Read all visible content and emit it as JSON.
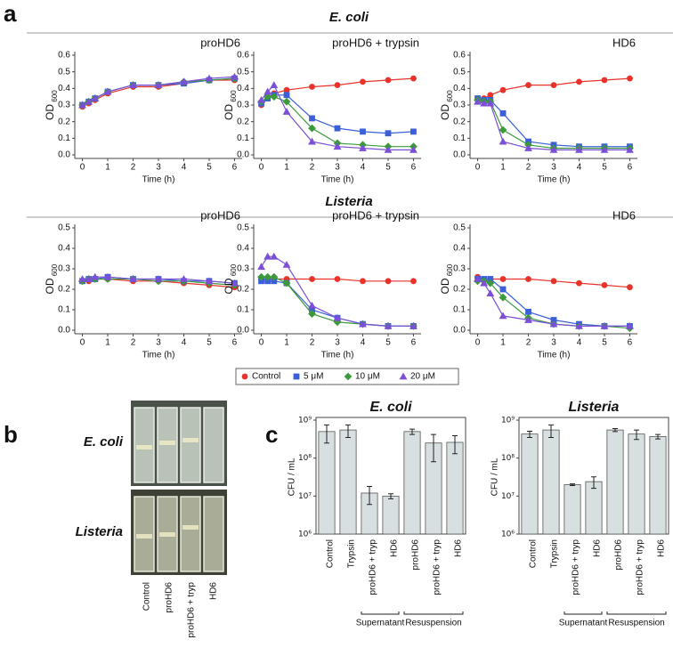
{
  "panel_labels": [
    "a",
    "b",
    "c"
  ],
  "sections": [
    "E. coli",
    "Listeria"
  ],
  "photo": {
    "row_labels": [
      "E. coli",
      "Listeria"
    ],
    "column_labels": [
      "Control",
      "proHD6",
      "proHD6 + tryp",
      "HD6"
    ]
  },
  "chart_data": [
    {
      "type": "line",
      "title": "proHD6",
      "ylabel": "OD",
      "ylabel_subscript": "600",
      "xlabel": "Time (h)",
      "x": [
        0,
        0.25,
        0.5,
        1,
        2,
        3,
        4,
        5,
        6
      ],
      "xlim": [
        -0.3,
        6.3
      ],
      "xticks": [
        0,
        1,
        2,
        3,
        4,
        5,
        6
      ],
      "ylim": [
        0,
        0.6
      ],
      "yticks": [
        {
          "value": 0,
          "label": "0.0"
        },
        0.1,
        0.2,
        0.3,
        0.4,
        0.5,
        0.6
      ],
      "legend_position": "bottom",
      "series": [
        {
          "name": "Control",
          "color": "#e8322a",
          "marker": "circle",
          "values": [
            0.29,
            0.31,
            0.33,
            0.37,
            0.41,
            0.41,
            0.43,
            0.45,
            0.45
          ]
        },
        {
          "name": "5 μM",
          "color": "#3a5fd9",
          "marker": "square",
          "values": [
            0.3,
            0.32,
            0.34,
            0.38,
            0.42,
            0.42,
            0.43,
            0.45,
            0.46
          ]
        },
        {
          "name": "10 μM",
          "color": "#3c9a3c",
          "marker": "diamond",
          "values": [
            0.3,
            0.32,
            0.34,
            0.38,
            0.42,
            0.42,
            0.44,
            0.45,
            0.46
          ]
        },
        {
          "name": "20 μM",
          "color": "#7b4fd6",
          "marker": "triangle",
          "values": [
            0.3,
            0.32,
            0.34,
            0.38,
            0.42,
            0.42,
            0.44,
            0.46,
            0.47
          ]
        }
      ]
    },
    {
      "type": "line",
      "title": "proHD6 + trypsin",
      "ylabel": "OD",
      "ylabel_subscript": "600",
      "xlabel": "Time (h)",
      "x": [
        0,
        0.25,
        0.5,
        1,
        2,
        3,
        4,
        5,
        6
      ],
      "xlim": [
        -0.3,
        6.3
      ],
      "xticks": [
        0,
        1,
        2,
        3,
        4,
        5,
        6
      ],
      "ylim": [
        0,
        0.6
      ],
      "yticks": [
        {
          "value": 0,
          "label": "0.0"
        },
        0.1,
        0.2,
        0.3,
        0.4,
        0.5,
        0.6
      ],
      "series": [
        {
          "color": "#e8322a",
          "marker": "circle",
          "values": [
            0.3,
            0.34,
            0.37,
            0.39,
            0.41,
            0.42,
            0.44,
            0.45,
            0.46
          ]
        },
        {
          "color": "#3a5fd9",
          "marker": "square",
          "values": [
            0.31,
            0.34,
            0.36,
            0.36,
            0.22,
            0.16,
            0.14,
            0.13,
            0.14
          ]
        },
        {
          "color": "#3c9a3c",
          "marker": "diamond",
          "values": [
            0.32,
            0.35,
            0.35,
            0.32,
            0.16,
            0.07,
            0.06,
            0.05,
            0.05
          ]
        },
        {
          "color": "#7b4fd6",
          "marker": "triangle",
          "values": [
            0.33,
            0.38,
            0.42,
            0.26,
            0.08,
            0.05,
            0.04,
            0.03,
            0.03
          ]
        }
      ]
    },
    {
      "type": "line",
      "title": "HD6",
      "ylabel": "OD",
      "ylabel_subscript": "600",
      "xlabel": "Time (h)",
      "x": [
        0,
        0.25,
        0.5,
        1,
        2,
        3,
        4,
        5,
        6
      ],
      "xlim": [
        -0.3,
        6.3
      ],
      "xticks": [
        0,
        1,
        2,
        3,
        4,
        5,
        6
      ],
      "ylim": [
        0,
        0.6
      ],
      "yticks": [
        {
          "value": 0,
          "label": "0.0"
        },
        0.1,
        0.2,
        0.3,
        0.4,
        0.5,
        0.6
      ],
      "series": [
        {
          "color": "#e8322a",
          "marker": "circle",
          "values": [
            0.33,
            0.34,
            0.36,
            0.39,
            0.42,
            0.42,
            0.44,
            0.45,
            0.46
          ]
        },
        {
          "color": "#3a5fd9",
          "marker": "square",
          "values": [
            0.34,
            0.33,
            0.33,
            0.25,
            0.08,
            0.06,
            0.05,
            0.05,
            0.05
          ]
        },
        {
          "color": "#3c9a3c",
          "marker": "diamond",
          "values": [
            0.33,
            0.32,
            0.32,
            0.15,
            0.06,
            0.04,
            0.04,
            0.04,
            0.04
          ]
        },
        {
          "color": "#7b4fd6",
          "marker": "triangle",
          "values": [
            0.32,
            0.31,
            0.31,
            0.08,
            0.04,
            0.03,
            0.03,
            0.03,
            0.03
          ]
        }
      ]
    },
    {
      "type": "line",
      "title": "proHD6",
      "ylabel": "OD",
      "ylabel_subscript": "600",
      "xlabel": "Time (h)",
      "x": [
        0,
        0.25,
        0.5,
        1,
        2,
        3,
        4,
        5,
        6
      ],
      "xlim": [
        -0.3,
        6.3
      ],
      "xticks": [
        0,
        1,
        2,
        3,
        4,
        5,
        6
      ],
      "ylim": [
        0,
        0.5
      ],
      "yticks": [
        {
          "value": 0,
          "label": "0.0"
        },
        0.1,
        0.2,
        0.3,
        0.4,
        0.5
      ],
      "series": [
        {
          "color": "#e8322a",
          "marker": "circle",
          "values": [
            0.24,
            0.24,
            0.25,
            0.25,
            0.24,
            0.24,
            0.23,
            0.22,
            0.21
          ]
        },
        {
          "color": "#3a5fd9",
          "marker": "square",
          "values": [
            0.24,
            0.25,
            0.25,
            0.26,
            0.25,
            0.25,
            0.24,
            0.24,
            0.23
          ]
        },
        {
          "color": "#3c9a3c",
          "marker": "diamond",
          "values": [
            0.24,
            0.25,
            0.25,
            0.25,
            0.25,
            0.24,
            0.24,
            0.23,
            0.22
          ]
        },
        {
          "color": "#7b4fd6",
          "marker": "triangle",
          "values": [
            0.25,
            0.25,
            0.26,
            0.26,
            0.25,
            0.25,
            0.25,
            0.24,
            0.23
          ]
        }
      ]
    },
    {
      "type": "line",
      "title": "proHD6 + trypsin",
      "ylabel": "OD",
      "ylabel_subscript": "600",
      "xlabel": "Time (h)",
      "x": [
        0,
        0.25,
        0.5,
        1,
        2,
        3,
        4,
        5,
        6
      ],
      "xlim": [
        -0.3,
        6.3
      ],
      "xticks": [
        0,
        1,
        2,
        3,
        4,
        5,
        6
      ],
      "ylim": [
        0,
        0.5
      ],
      "yticks": [
        {
          "value": 0,
          "label": "0.0"
        },
        0.1,
        0.2,
        0.3,
        0.4,
        0.5
      ],
      "series": [
        {
          "color": "#e8322a",
          "marker": "circle",
          "values": [
            0.25,
            0.25,
            0.25,
            0.25,
            0.25,
            0.25,
            0.24,
            0.24,
            0.24
          ]
        },
        {
          "color": "#3a5fd9",
          "marker": "square",
          "values": [
            0.24,
            0.24,
            0.24,
            0.23,
            0.1,
            0.06,
            0.03,
            0.02,
            0.02
          ]
        },
        {
          "color": "#3c9a3c",
          "marker": "diamond",
          "values": [
            0.26,
            0.26,
            0.26,
            0.23,
            0.08,
            0.04,
            0.03,
            0.02,
            0.02
          ]
        },
        {
          "color": "#7b4fd6",
          "marker": "triangle",
          "values": [
            0.31,
            0.36,
            0.36,
            0.32,
            0.12,
            0.06,
            0.03,
            0.02,
            0.02
          ]
        }
      ]
    },
    {
      "type": "line",
      "title": "HD6",
      "ylabel": "OD",
      "ylabel_subscript": "600",
      "xlabel": "Time (h)",
      "x": [
        0,
        0.25,
        0.5,
        1,
        2,
        3,
        4,
        5,
        6
      ],
      "xlim": [
        -0.3,
        6.3
      ],
      "xticks": [
        0,
        1,
        2,
        3,
        4,
        5,
        6
      ],
      "ylim": [
        0,
        0.5
      ],
      "yticks": [
        {
          "value": 0,
          "label": "0.0"
        },
        0.1,
        0.2,
        0.3,
        0.4,
        0.5
      ],
      "series": [
        {
          "color": "#e8322a",
          "marker": "circle",
          "values": [
            0.26,
            0.25,
            0.25,
            0.25,
            0.25,
            0.24,
            0.23,
            0.22,
            0.21
          ]
        },
        {
          "color": "#3a5fd9",
          "marker": "square",
          "values": [
            0.25,
            0.25,
            0.25,
            0.2,
            0.09,
            0.05,
            0.03,
            0.02,
            0.02
          ]
        },
        {
          "color": "#3c9a3c",
          "marker": "diamond",
          "values": [
            0.24,
            0.24,
            0.23,
            0.16,
            0.06,
            0.03,
            0.02,
            0.02,
            0.01
          ]
        },
        {
          "color": "#7b4fd6",
          "marker": "triangle",
          "values": [
            0.25,
            0.23,
            0.18,
            0.07,
            0.05,
            0.03,
            0.02,
            0.02,
            0.02
          ]
        }
      ]
    },
    {
      "type": "bar",
      "title": "E. coli",
      "ylabel": "CFU / mL",
      "log_scale": true,
      "color": "#d8dfe0",
      "categories": [
        "Control",
        "Trypsin",
        "proHD6 + tryp",
        "HD6",
        "proHD6",
        "proHD6 + tryp",
        "HD6"
      ],
      "values": [
        500000000,
        550000000,
        12000000,
        10000000,
        500000000,
        250000000,
        260000000
      ],
      "errors": [
        250000000,
        200000000,
        6000000,
        1500000,
        80000000,
        170000000,
        130000000
      ],
      "group_labels": [
        "Supernatant",
        "Resuspension"
      ],
      "ylim": [
        1000000,
        1000000000
      ],
      "yticks": [
        {
          "value": 1000000,
          "label": "10⁶"
        },
        {
          "value": 10000000,
          "label": "10⁷"
        },
        {
          "value": 100000000,
          "label": "10⁸"
        },
        {
          "value": 1000000000,
          "label": "10⁹"
        }
      ]
    },
    {
      "type": "bar",
      "title": "Listeria",
      "ylabel": "CFU / mL",
      "log_scale": true,
      "color": "#d8dfe0",
      "categories": [
        "Control",
        "Trypsin",
        "proHD6 + tryp",
        "HD6",
        "proHD6",
        "proHD6 + tryp",
        "HD6"
      ],
      "values": [
        430000000,
        550000000,
        20000000,
        24000000,
        550000000,
        430000000,
        370000000
      ],
      "errors": [
        80000000,
        200000000,
        1000000,
        8000000,
        50000000,
        120000000,
        50000000
      ],
      "group_labels": [
        "Supernatant",
        "Resuspension"
      ],
      "ylim": [
        1000000,
        1000000000
      ],
      "yticks": [
        {
          "value": 1000000,
          "label": "10⁶"
        },
        {
          "value": 10000000,
          "label": "10⁷"
        },
        {
          "value": 100000000,
          "label": "10⁸"
        },
        {
          "value": 1000000000,
          "label": "10⁹"
        }
      ]
    }
  ]
}
